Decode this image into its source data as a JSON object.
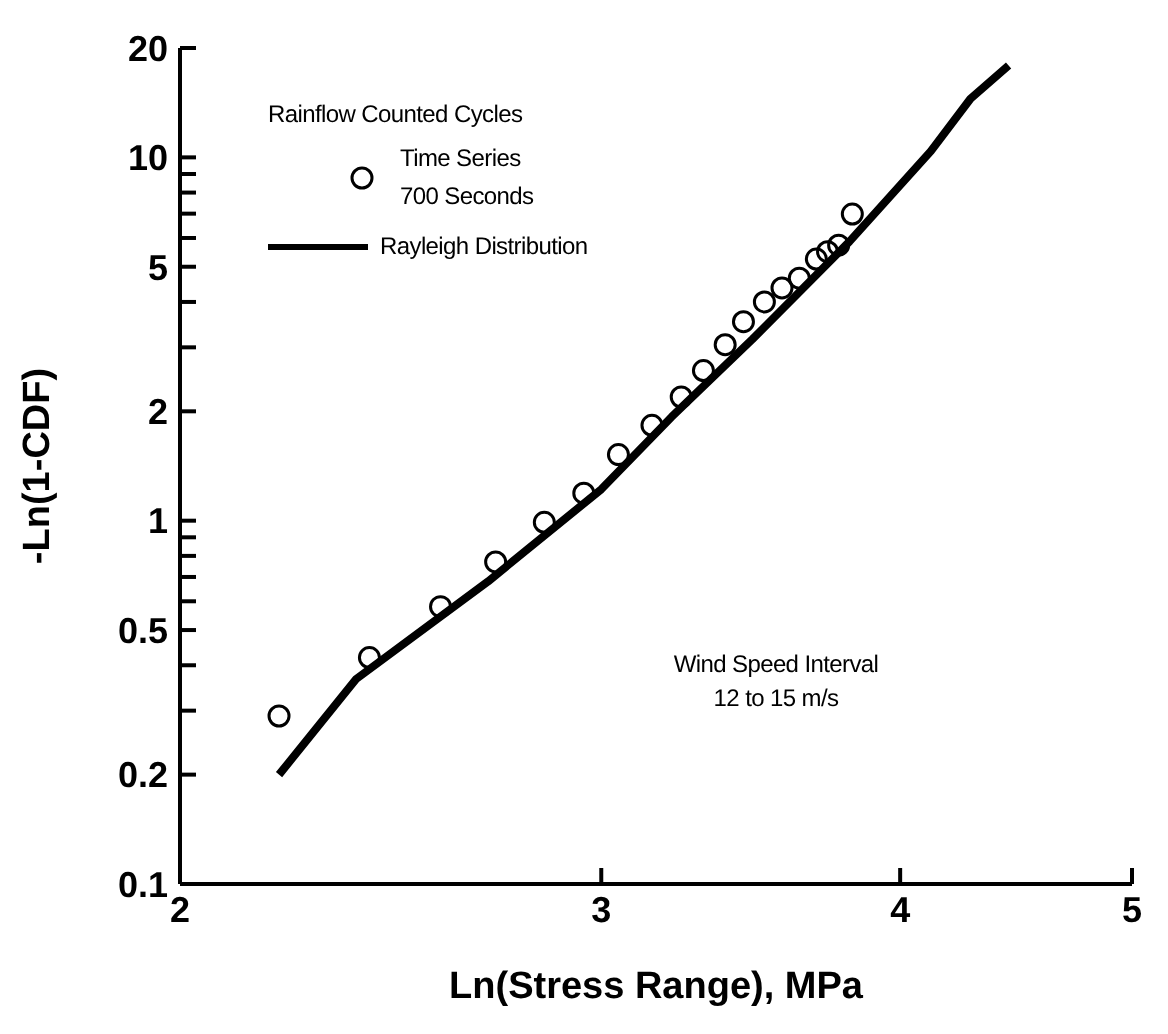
{
  "chart_data": {
    "type": "scatter",
    "xlabel": "Ln(Stress Range), MPa",
    "ylabel": "-Ln(1-CDF)",
    "legend_title": "Rainflow Counted Cycles",
    "legend": "top left",
    "log": "xy",
    "xlim": [
      2,
      5
    ],
    "xticks": [
      2,
      3,
      4,
      5
    ],
    "ylim": [
      0.1,
      20
    ],
    "yticks": [
      0.1,
      0.2,
      {
        "value": 0.3,
        "label": null
      },
      {
        "value": 0.4,
        "label": null
      },
      0.5,
      {
        "value": 0.6,
        "label": null
      },
      {
        "value": 0.7,
        "label": null
      },
      {
        "value": 0.8,
        "label": null
      },
      {
        "value": 0.9,
        "label": null
      },
      1,
      2,
      {
        "value": 3,
        "label": null
      },
      {
        "value": 4,
        "label": null
      },
      5,
      {
        "value": 6,
        "label": null
      },
      {
        "value": 7,
        "label": null
      },
      {
        "value": 8,
        "label": null
      },
      {
        "value": 9,
        "label": null
      },
      10,
      20
    ],
    "annotations": [
      "Wind Speed Interval",
      "12 to 15 m/s"
    ],
    "series": [
      {
        "name": "Time Series\n700 Seconds",
        "marker": "circle",
        "color": "#000000",
        "x": [
          2.2,
          2.4,
          2.57,
          2.71,
          2.84,
          2.95,
          3.05,
          3.15,
          3.24,
          3.31,
          3.38,
          3.44,
          3.51,
          3.57,
          3.63,
          3.69,
          3.73,
          3.77,
          3.82
        ],
        "values": [
          0.29,
          0.42,
          0.58,
          0.77,
          0.99,
          1.19,
          1.52,
          1.83,
          2.19,
          2.59,
          3.05,
          3.53,
          4.0,
          4.37,
          4.65,
          5.25,
          5.5,
          5.73,
          6.98
        ]
      },
      {
        "name": "Rayleigh Distribution",
        "type": "line",
        "marker": "none",
        "line_style": "solid",
        "color": "#000000",
        "x": [
          2.2,
          2.37,
          2.69,
          3.0,
          3.21,
          3.47,
          3.81,
          4.12,
          4.28,
          4.44
        ],
        "values": [
          0.2,
          0.367,
          0.68,
          1.22,
          1.93,
          3.16,
          5.87,
          10.4,
          14.5,
          17.9
        ]
      }
    ]
  }
}
